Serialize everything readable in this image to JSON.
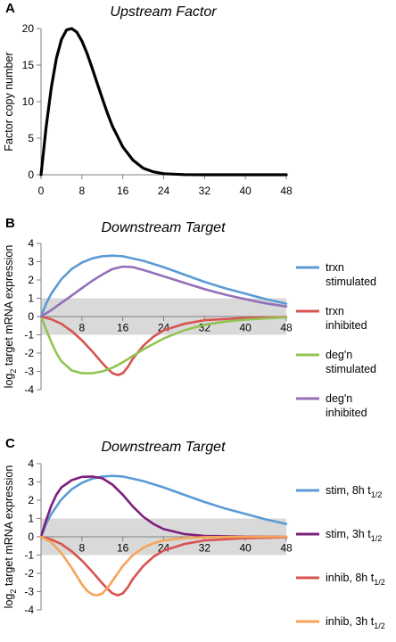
{
  "chart_data": [
    {
      "type": "line",
      "panel_label": "A",
      "title": "Upstream Factor",
      "xlabel": "",
      "ylabel": "Factor copy number",
      "xlim": [
        0,
        48
      ],
      "ylim": [
        0,
        20
      ],
      "x_ticks": [
        "0",
        "8",
        "16",
        "24",
        "32",
        "40",
        "48"
      ],
      "y_ticks": [
        "0",
        "5",
        "10",
        "15",
        "20"
      ],
      "grid": false,
      "legend": "none",
      "series": [
        {
          "color": "#000000",
          "x": [
            0,
            1,
            2,
            3,
            4,
            5,
            6,
            7,
            8,
            9,
            10,
            11,
            12,
            13,
            14,
            16,
            18,
            20,
            22,
            24,
            28,
            32,
            40,
            48
          ],
          "y": [
            0,
            6.5,
            11.9,
            15.9,
            18.5,
            19.8,
            20.0,
            19.5,
            18.3,
            16.6,
            14.6,
            12.5,
            10.4,
            8.4,
            6.6,
            3.8,
            2.0,
            0.9,
            0.4,
            0.15,
            0.02,
            0,
            0,
            0
          ]
        }
      ]
    },
    {
      "type": "line",
      "panel_label": "B",
      "title": "Downstream Target",
      "xlabel": "",
      "ylabel": "log₂ target mRNA expression",
      "xlim": [
        0,
        48
      ],
      "ylim": [
        -4,
        4
      ],
      "x_ticks": [
        "8",
        "16",
        "24",
        "32",
        "40",
        "48"
      ],
      "y_ticks": [
        "4",
        "3",
        "2",
        "1",
        "0",
        "-1",
        "-2",
        "-3",
        "-4"
      ],
      "shaded_band": [
        -1,
        1
      ],
      "legend": "right",
      "series": [
        {
          "name_lines": [
            "trxn",
            "stimulated"
          ],
          "color": "#5b9bd5",
          "x": [
            0,
            1,
            2,
            4,
            6,
            8,
            10,
            12,
            14,
            16,
            20,
            24,
            28,
            32,
            36,
            40,
            44,
            48
          ],
          "y": [
            0,
            0.7,
            1.25,
            2.05,
            2.6,
            2.95,
            3.18,
            3.3,
            3.33,
            3.3,
            3.05,
            2.7,
            2.3,
            1.9,
            1.55,
            1.25,
            0.95,
            0.7
          ]
        },
        {
          "name_lines": [
            "trxn",
            "inhibited"
          ],
          "color": "#d9534f",
          "x": [
            0,
            2,
            4,
            6,
            8,
            10,
            12,
            13,
            14,
            15,
            16,
            17,
            18,
            20,
            22,
            24,
            28,
            32,
            40,
            48
          ],
          "y": [
            0,
            -0.15,
            -0.4,
            -0.8,
            -1.3,
            -1.9,
            -2.55,
            -2.85,
            -3.1,
            -3.2,
            -3.1,
            -2.75,
            -2.3,
            -1.6,
            -1.1,
            -0.75,
            -0.4,
            -0.2,
            -0.08,
            -0.03
          ]
        },
        {
          "name_lines": [
            "deg'n",
            "stimulated"
          ],
          "color": "#92c353",
          "x": [
            0,
            1,
            2,
            3,
            4,
            6,
            8,
            10,
            12,
            14,
            16,
            18,
            20,
            24,
            28,
            32,
            36,
            40,
            44,
            48
          ],
          "y": [
            0,
            -0.7,
            -1.4,
            -2.0,
            -2.45,
            -2.95,
            -3.1,
            -3.1,
            -3.0,
            -2.8,
            -2.5,
            -2.15,
            -1.8,
            -1.2,
            -0.75,
            -0.45,
            -0.28,
            -0.17,
            -0.1,
            -0.05
          ]
        },
        {
          "name_lines": [
            "deg'n",
            "inhibited"
          ],
          "color": "#9370b8",
          "x": [
            0,
            2,
            4,
            6,
            8,
            10,
            12,
            14,
            16,
            18,
            20,
            24,
            28,
            32,
            36,
            40,
            44,
            48
          ],
          "y": [
            0,
            0.35,
            0.75,
            1.15,
            1.55,
            1.95,
            2.3,
            2.6,
            2.73,
            2.7,
            2.55,
            2.2,
            1.85,
            1.5,
            1.2,
            0.95,
            0.72,
            0.55
          ]
        }
      ]
    },
    {
      "type": "line",
      "panel_label": "C",
      "title": "Downstream Target",
      "xlabel": "",
      "ylabel": "log₂ target mRNA expression",
      "xlim": [
        0,
        48
      ],
      "ylim": [
        -4,
        4
      ],
      "x_ticks": [
        "8",
        "16",
        "24",
        "32",
        "40",
        "48"
      ],
      "y_ticks": [
        "4",
        "3",
        "2",
        "1",
        "0",
        "-1",
        "-2",
        "-3",
        "-4"
      ],
      "shaded_band": [
        -1,
        1
      ],
      "legend": "right",
      "series": [
        {
          "name": "stim, 8h t",
          "subscript": "1/2",
          "color": "#5b9bd5",
          "x": [
            0,
            1,
            2,
            4,
            6,
            8,
            10,
            12,
            14,
            16,
            20,
            24,
            28,
            32,
            36,
            40,
            44,
            48
          ],
          "y": [
            0,
            0.7,
            1.25,
            2.05,
            2.6,
            2.95,
            3.18,
            3.3,
            3.33,
            3.3,
            3.05,
            2.7,
            2.3,
            1.9,
            1.55,
            1.25,
            0.95,
            0.7
          ]
        },
        {
          "name": "stim, 3h t",
          "subscript": "1/2",
          "color": "#7b1f7b",
          "x": [
            0,
            1,
            2,
            3,
            4,
            6,
            8,
            10,
            12,
            14,
            16,
            18,
            20,
            22,
            24,
            28,
            32,
            40,
            48
          ],
          "y": [
            0,
            0.9,
            1.7,
            2.3,
            2.7,
            3.1,
            3.28,
            3.3,
            3.2,
            2.85,
            2.3,
            1.65,
            1.1,
            0.7,
            0.42,
            0.15,
            0.05,
            0.01,
            0
          ]
        },
        {
          "name": "inhib, 8h t",
          "subscript": "1/2",
          "color": "#d9534f",
          "x": [
            0,
            2,
            4,
            6,
            8,
            10,
            12,
            13,
            14,
            15,
            16,
            17,
            18,
            20,
            22,
            24,
            28,
            32,
            40,
            48
          ],
          "y": [
            0,
            -0.15,
            -0.4,
            -0.8,
            -1.3,
            -1.9,
            -2.55,
            -2.85,
            -3.1,
            -3.2,
            -3.1,
            -2.75,
            -2.3,
            -1.6,
            -1.1,
            -0.75,
            -0.4,
            -0.2,
            -0.08,
            -0.03
          ]
        },
        {
          "name": "inhib, 3h t",
          "subscript": "1/2",
          "color": "#f5a55a",
          "x": [
            0,
            2,
            4,
            6,
            8,
            9,
            10,
            11,
            12,
            13,
            14,
            16,
            18,
            20,
            22,
            24,
            28,
            32,
            40,
            48
          ],
          "y": [
            0,
            -0.3,
            -0.9,
            -1.7,
            -2.6,
            -2.95,
            -3.15,
            -3.2,
            -3.1,
            -2.8,
            -2.4,
            -1.6,
            -1.0,
            -0.6,
            -0.35,
            -0.2,
            -0.07,
            -0.02,
            0,
            0
          ]
        }
      ]
    }
  ]
}
